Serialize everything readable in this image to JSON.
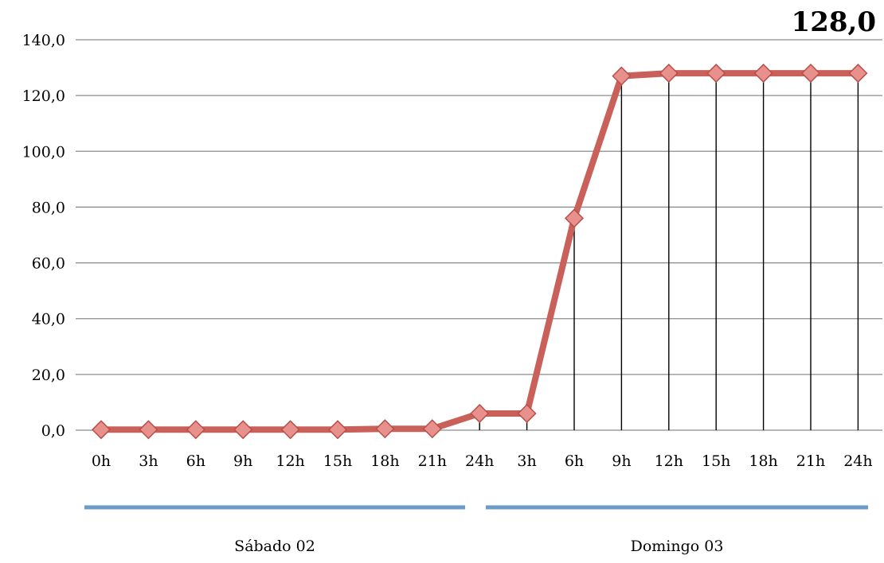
{
  "headline_value": "128,0",
  "chart_data": {
    "type": "line",
    "categories": [
      "0h",
      "3h",
      "6h",
      "9h",
      "12h",
      "15h",
      "18h",
      "21h",
      "24h",
      "3h",
      "6h",
      "9h",
      "12h",
      "15h",
      "18h",
      "21h",
      "24h"
    ],
    "series": [
      {
        "values": [
          0.2,
          0.2,
          0.2,
          0.2,
          0.2,
          0.2,
          0.5,
          0.5,
          6.0,
          6.0,
          76.0,
          127.0,
          128.0,
          128.0,
          128.0,
          128.0,
          128.0
        ]
      }
    ],
    "y_ticks": [
      "0,0",
      "20,0",
      "40,0",
      "60,0",
      "80,0",
      "100,0",
      "120,0",
      "140,0"
    ],
    "ylim": [
      0,
      140
    ],
    "grid": true,
    "drop_lines_from_index": 8,
    "groups": [
      {
        "label": "Sábado 02",
        "from": 0,
        "to": 8
      },
      {
        "label": "Domingo 03",
        "from": 9,
        "to": 16
      }
    ],
    "colors": {
      "line": "#c9605a",
      "marker_fill": "#e8908b",
      "marker_stroke": "#b8504a",
      "grid": "#8c8c8c",
      "group_bar": "#6b9bc8",
      "drop_line": "#000000"
    }
  }
}
